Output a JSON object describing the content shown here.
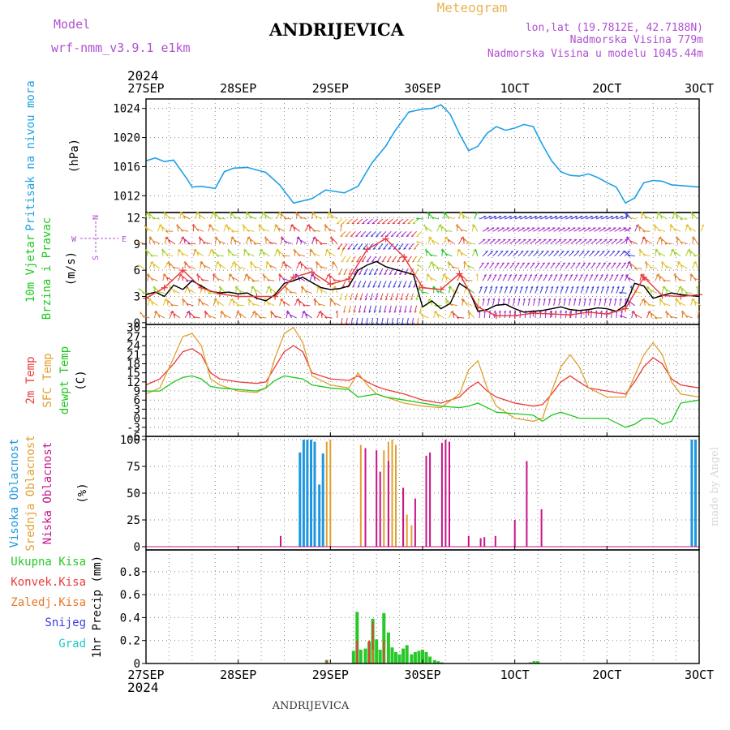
{
  "header": {
    "model_label": "Model",
    "model_name": "wrf-nmm_v3.9.1 e1km",
    "place_title": "ANDRIJEVICA",
    "product": "Meteogram",
    "lonlat": "lon,lat (19.7812E, 42.7188N)",
    "elevation": "Nadmorska Visina 779m",
    "model_elevation": "Nadmorska Visina u modelu 1045.44m",
    "year_top": "2024",
    "year_bottom": "2024",
    "footer_place": "ANDRIJEVICA",
    "credit": "made by Angel"
  },
  "time_axis": {
    "labels": [
      "27SEP",
      "28SEP",
      "29SEP",
      "30SEP",
      "1OCT",
      "2OCT",
      "3OCT"
    ],
    "minor_per_day": 4
  },
  "colors": {
    "pressure": "#1ea0e6",
    "temp2m": "#e83c3c",
    "sfc_temp": "#e0a030",
    "dewpt": "#1ec81e",
    "wind_speed": "#000000",
    "wind_gust": "#e83c3c",
    "high_cloud": "#1e96e0",
    "mid_cloud": "#e0a030",
    "low_cloud": "#c8148c",
    "total_precip": "#28c828",
    "convective": "#e83c3c",
    "frozen": "#e87828",
    "snow": "#3c3ce0",
    "graupel": "#1ec8c8",
    "label_purple": "#b050d0",
    "label_orange": "#e8b450"
  },
  "chart_data": [
    {
      "type": "line",
      "ylabel_left": "Pritisak na nivou mora",
      "unit": "(hPa)",
      "y_ticks": [
        1012,
        1016,
        1020,
        1024
      ],
      "ylim": [
        1009.7,
        1025.3
      ],
      "series": [
        {
          "key": "pressure",
          "x": [
            0,
            0.1,
            0.2,
            0.3,
            0.45,
            0.5,
            0.6,
            0.75,
            0.85,
            0.95,
            1.1,
            1.3,
            1.45,
            1.6,
            1.7,
            1.8,
            1.95,
            2.05,
            2.15,
            2.3,
            2.45,
            2.6,
            2.7,
            2.85,
            3.0,
            3.1,
            3.2,
            3.3,
            3.4,
            3.5,
            3.6,
            3.7,
            3.8,
            3.9,
            4.0,
            4.1,
            4.2,
            4.3,
            4.4,
            4.5,
            4.6,
            4.7,
            4.8,
            4.9,
            5.0,
            5.1,
            5.2,
            5.3,
            5.4,
            5.5,
            5.6,
            5.7,
            5.8,
            5.9,
            6.0
          ],
          "values": [
            1016.8,
            1017.2,
            1016.7,
            1016.9,
            1014.2,
            1013.2,
            1013.3,
            1013.0,
            1015.3,
            1015.8,
            1015.9,
            1015.2,
            1013.5,
            1011.0,
            1011.3,
            1011.6,
            1012.8,
            1012.6,
            1012.4,
            1013.3,
            1016.5,
            1018.8,
            1020.9,
            1023.5,
            1023.9,
            1024.0,
            1024.5,
            1023.2,
            1020.5,
            1018.2,
            1018.8,
            1020.6,
            1021.5,
            1021.0,
            1021.3,
            1021.8,
            1021.5,
            1019.0,
            1016.8,
            1015.3,
            1014.8,
            1014.7,
            1015.0,
            1014.5,
            1013.8,
            1013.2,
            1011.0,
            1011.7,
            1013.8,
            1014.1,
            1014.0,
            1013.5,
            1013.4,
            1013.3,
            1013.2
          ]
        }
      ]
    },
    {
      "type": "line",
      "ylabel_left": "10m Vjetar",
      "ylabel_left2": "Brzina i Pravac",
      "unit": "(m/s)",
      "compass_n": "N",
      "compass_w": "W",
      "compass_e": "E",
      "compass_s": "S",
      "y_ticks": [
        0,
        3,
        6,
        9,
        12
      ],
      "ylim": [
        -0.2,
        12.6
      ],
      "series": [
        {
          "key": "wind_speed",
          "x": [
            0,
            0.1,
            0.2,
            0.3,
            0.4,
            0.5,
            0.6,
            0.7,
            0.8,
            0.9,
            1.0,
            1.1,
            1.2,
            1.3,
            1.4,
            1.5,
            1.6,
            1.7,
            1.8,
            1.9,
            2.0,
            2.1,
            2.2,
            2.3,
            2.4,
            2.5,
            2.6,
            2.7,
            2.8,
            2.9,
            3.0,
            3.1,
            3.2,
            3.3,
            3.4,
            3.5,
            3.6,
            3.7,
            3.8,
            3.9,
            4.0,
            4.1,
            4.2,
            4.3,
            4.4,
            4.5,
            4.6,
            4.7,
            4.8,
            4.9,
            5.0,
            5.1,
            5.2,
            5.3,
            5.4,
            5.5,
            5.6,
            5.7,
            5.8,
            5.9,
            6.0
          ],
          "values": [
            3.2,
            3.5,
            3.0,
            4.3,
            3.8,
            4.8,
            4.2,
            3.6,
            3.4,
            3.5,
            3.3,
            3.4,
            2.8,
            2.5,
            3.2,
            4.5,
            4.8,
            5.2,
            4.6,
            4.0,
            3.8,
            3.9,
            4.2,
            6.0,
            6.6,
            7.0,
            6.4,
            6.1,
            5.8,
            5.5,
            1.8,
            2.5,
            1.6,
            2.2,
            4.5,
            3.8,
            1.3,
            1.5,
            2.0,
            2.1,
            1.6,
            1.2,
            1.3,
            1.4,
            1.6,
            1.8,
            1.5,
            1.4,
            1.5,
            1.7,
            1.6,
            1.3,
            2.0,
            4.5,
            4.2,
            2.8,
            3.1,
            3.4,
            3.2,
            3.1,
            3.0
          ]
        },
        {
          "key": "wind_gust",
          "x": [
            0,
            0.2,
            0.4,
            0.6,
            0.8,
            1.0,
            1.2,
            1.4,
            1.6,
            1.8,
            2.0,
            2.2,
            2.4,
            2.6,
            2.8,
            3.0,
            3.2,
            3.4,
            3.6,
            3.8,
            4.0,
            4.2,
            4.4,
            4.6,
            4.8,
            5.0,
            5.2,
            5.4,
            5.6,
            5.8,
            6.0
          ],
          "values": [
            2.8,
            4.0,
            6.0,
            4.0,
            3.3,
            3.0,
            3.0,
            3.0,
            5.2,
            5.8,
            4.4,
            5.0,
            8.4,
            9.6,
            7.5,
            4.0,
            3.8,
            5.6,
            1.8,
            0.8,
            0.8,
            1.1,
            1.0,
            0.9,
            1.2,
            1.0,
            1.6,
            5.2,
            3.1,
            3.0,
            3.2
          ]
        }
      ]
    },
    {
      "type": "line",
      "ylabel_left": "2m Temp",
      "ylabel_left2": "SFC Temp",
      "ylabel_left3": "dewpt Temp",
      "unit": "(C)",
      "y_ticks": [
        -6,
        -3,
        0,
        3,
        6,
        9,
        12,
        15,
        18,
        21,
        24,
        27,
        30
      ],
      "ylim": [
        -6,
        31
      ],
      "series": [
        {
          "key": "temp2m",
          "x": [
            0,
            0.15,
            0.3,
            0.4,
            0.5,
            0.6,
            0.7,
            0.8,
            1.0,
            1.2,
            1.3,
            1.4,
            1.5,
            1.6,
            1.7,
            1.8,
            2.0,
            2.2,
            2.3,
            2.4,
            2.5,
            2.6,
            2.8,
            3.0,
            3.2,
            3.4,
            3.5,
            3.6,
            3.7,
            3.8,
            4.0,
            4.2,
            4.3,
            4.4,
            4.5,
            4.6,
            4.7,
            4.8,
            5.0,
            5.2,
            5.3,
            5.4,
            5.5,
            5.6,
            5.7,
            5.8,
            6.0
          ],
          "values": [
            11,
            13,
            18,
            22,
            23,
            21,
            15,
            13,
            12,
            11.5,
            12,
            17,
            22,
            24,
            22,
            15,
            13,
            12.5,
            14,
            12,
            10.5,
            9.5,
            8,
            6,
            5,
            7,
            10,
            12,
            9,
            7,
            5,
            4,
            4.5,
            8,
            12,
            14,
            12,
            10,
            9,
            8,
            12,
            17,
            20,
            18,
            13,
            11,
            10
          ]
        },
        {
          "key": "sfc_temp",
          "x": [
            0,
            0.15,
            0.3,
            0.4,
            0.5,
            0.6,
            0.7,
            0.8,
            1.0,
            1.2,
            1.3,
            1.4,
            1.5,
            1.6,
            1.7,
            1.8,
            2.0,
            2.2,
            2.3,
            2.4,
            2.5,
            2.6,
            2.8,
            3.0,
            3.2,
            3.4,
            3.5,
            3.6,
            3.7,
            3.8,
            4.0,
            4.2,
            4.3,
            4.4,
            4.5,
            4.6,
            4.7,
            4.8,
            5.0,
            5.2,
            5.3,
            5.4,
            5.5,
            5.6,
            5.7,
            5.8,
            6.0
          ],
          "values": [
            8,
            10,
            20,
            27,
            28,
            24,
            13,
            11,
            9,
            8.5,
            10,
            20,
            28,
            30,
            25,
            14,
            11,
            10,
            15,
            11,
            8,
            7,
            5,
            4,
            3.5,
            8,
            16,
            19,
            10,
            4,
            0,
            -1,
            0,
            9,
            17,
            21,
            17,
            10,
            7,
            7,
            14,
            21,
            25,
            21,
            12,
            8,
            7
          ]
        },
        {
          "key": "dewpt",
          "x": [
            0,
            0.15,
            0.3,
            0.4,
            0.5,
            0.6,
            0.7,
            0.8,
            1.0,
            1.2,
            1.3,
            1.4,
            1.5,
            1.6,
            1.7,
            1.8,
            2.0,
            2.2,
            2.3,
            2.4,
            2.5,
            2.6,
            2.8,
            3.0,
            3.2,
            3.4,
            3.5,
            3.6,
            3.7,
            3.8,
            4.0,
            4.2,
            4.3,
            4.4,
            4.5,
            4.6,
            4.7,
            4.8,
            5.0,
            5.2,
            5.3,
            5.4,
            5.5,
            5.6,
            5.7,
            5.8,
            6.0
          ],
          "values": [
            9,
            9,
            12,
            13.5,
            14,
            13,
            10.5,
            10,
            9.5,
            9,
            10,
            12.5,
            14,
            13.5,
            13,
            11,
            10,
            9.5,
            7,
            7.5,
            8,
            7,
            6,
            5,
            4,
            3.5,
            4,
            5,
            3.5,
            2,
            1.5,
            1,
            -1,
            1,
            2,
            1,
            0,
            0,
            0,
            -3,
            -2,
            0,
            0,
            -2,
            -1,
            5,
            6
          ]
        }
      ]
    },
    {
      "type": "bar",
      "ylabel_left": "Visoka Oblacnost",
      "ylabel_left2": "Srednja Oblacnost",
      "ylabel_left3": "Niska Oblacnost",
      "unit": "(%)",
      "y_ticks": [
        0,
        25,
        50,
        75,
        100
      ],
      "ylim": [
        -3,
        103
      ],
      "series": [
        {
          "key": "high_cloud",
          "x": [
            1.67,
            1.71,
            1.75,
            1.79,
            1.83,
            1.88,
            1.92,
            5.92,
            5.96
          ],
          "values": [
            88,
            100,
            100,
            100,
            98,
            58,
            87,
            100,
            100
          ]
        },
        {
          "key": "mid_cloud",
          "x": [
            1.96,
            2.0,
            2.33,
            2.58,
            2.63,
            2.67,
            2.71,
            2.79,
            2.83,
            2.88
          ],
          "values": [
            98,
            100,
            95,
            90,
            98,
            100,
            95,
            55,
            30,
            20
          ]
        },
        {
          "key": "low_cloud",
          "x": [
            1.46,
            2.38,
            2.5,
            2.54,
            2.63,
            2.79,
            2.92,
            3.04,
            3.08,
            3.21,
            3.25,
            3.29,
            3.5,
            3.63,
            3.67,
            3.79,
            4.0,
            4.13,
            4.29
          ],
          "values": [
            10,
            92,
            90,
            70,
            80,
            55,
            45,
            85,
            88,
            97,
            100,
            98,
            10,
            8,
            9,
            10,
            25,
            80,
            35
          ]
        }
      ]
    },
    {
      "type": "bar",
      "ylabel_left": "Ukupna Kisa",
      "ylabel_left2": "Konvek.Kisa",
      "ylabel_left3": "Zaledj.Kisa",
      "ylabel_left4": "Snijeg",
      "ylabel_left5": "Grad",
      "unit": "1hr Precip (mm)",
      "y_ticks": [
        0,
        0.2,
        0.4,
        0.6,
        0.8
      ],
      "ylim": [
        0,
        0.99
      ],
      "series": [
        {
          "key": "total_precip",
          "x": [
            1.96,
            2.25,
            2.29,
            2.33,
            2.38,
            2.42,
            2.46,
            2.5,
            2.54,
            2.58,
            2.63,
            2.67,
            2.71,
            2.75,
            2.79,
            2.83,
            2.88,
            2.92,
            2.96,
            3.0,
            3.04,
            3.08,
            3.13,
            3.17,
            3.21,
            4.17,
            4.21,
            4.25
          ],
          "values": [
            0.03,
            0.11,
            0.45,
            0.12,
            0.13,
            0.19,
            0.39,
            0.21,
            0.12,
            0.44,
            0.27,
            0.14,
            0.1,
            0.08,
            0.13,
            0.16,
            0.08,
            0.1,
            0.11,
            0.12,
            0.1,
            0.06,
            0.03,
            0.02,
            0.01,
            0.01,
            0.02,
            0.02
          ]
        },
        {
          "key": "convective",
          "x": [
            1.96,
            2.29,
            2.42,
            2.46,
            2.58
          ],
          "values": [
            0.03,
            0.2,
            0.2,
            0.36,
            0.2
          ]
        },
        {
          "key": "frozen",
          "x": [
            2.46
          ],
          "values": [
            0.12
          ]
        }
      ]
    }
  ]
}
